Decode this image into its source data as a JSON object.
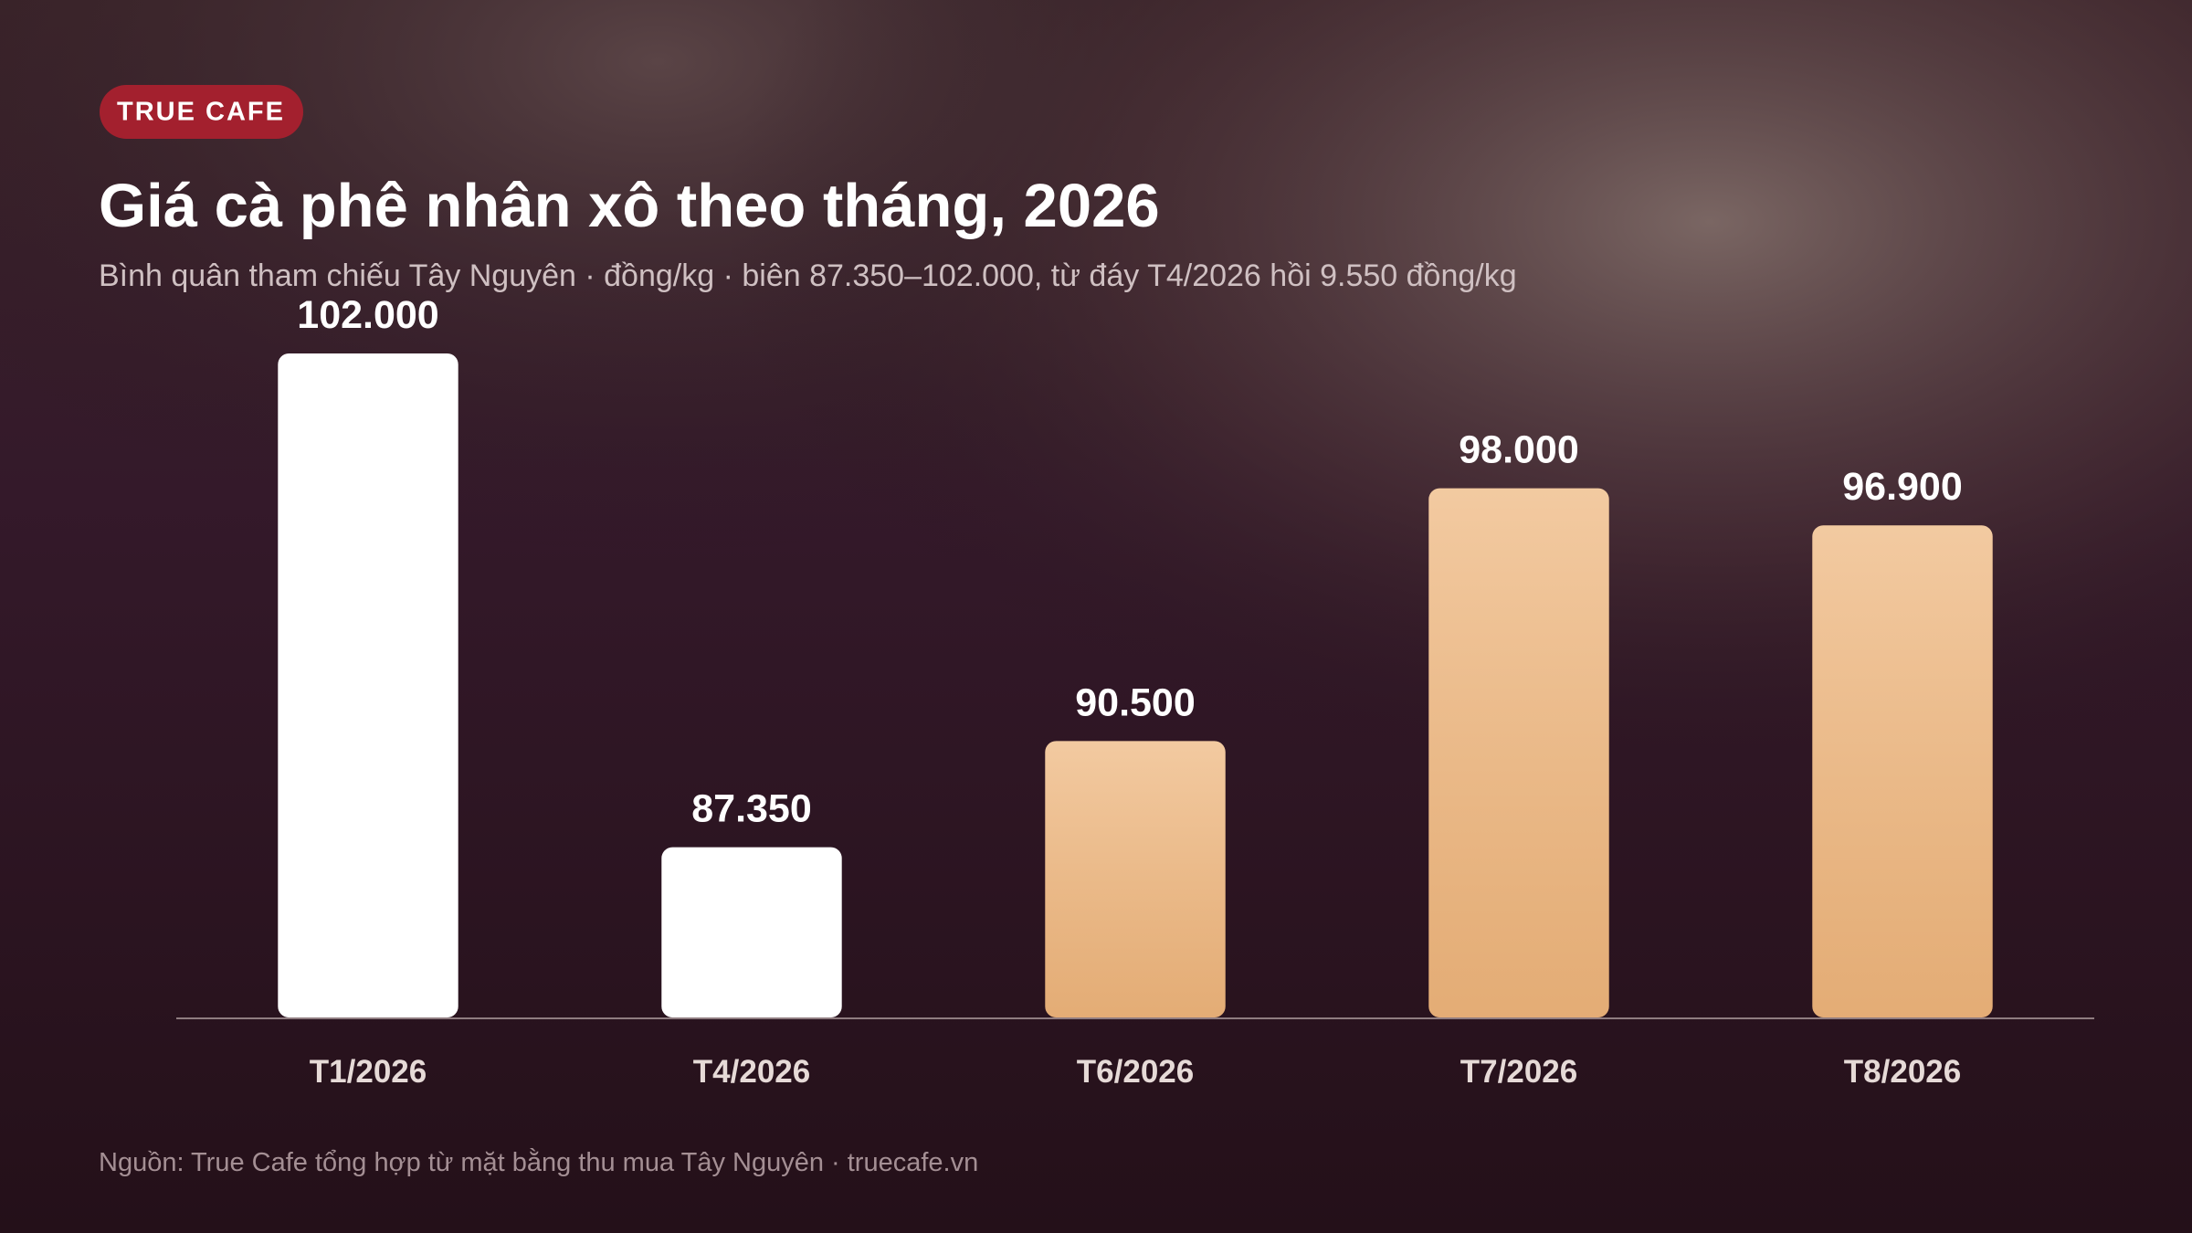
{
  "brand": "TRUE CAFE",
  "chart_data": {
    "type": "bar",
    "title": "Giá cà phê nhân xô theo tháng, 2026",
    "subtitle": "Bình quân tham chiếu Tây Nguyên · đồng/kg · biên 87.350–102.000, từ đáy T4/2026 hồi 9.550 đồng/kg",
    "categories": [
      "T1/2026",
      "T4/2026",
      "T6/2026",
      "T7/2026",
      "T8/2026"
    ],
    "values": [
      102000,
      87350,
      90500,
      98000,
      96900
    ],
    "value_labels": [
      "102.000",
      "87.350",
      "90.500",
      "98.000",
      "96.900"
    ],
    "colors": [
      "#ffffff",
      "#ffffff",
      "#efbb86",
      "#efbb86",
      "#efbb86"
    ],
    "ylim": [
      82300,
      102000
    ]
  },
  "source": "Nguồn: True Cafe tổng hợp từ mặt bằng thu mua Tây Nguyên · truecafe.vn"
}
